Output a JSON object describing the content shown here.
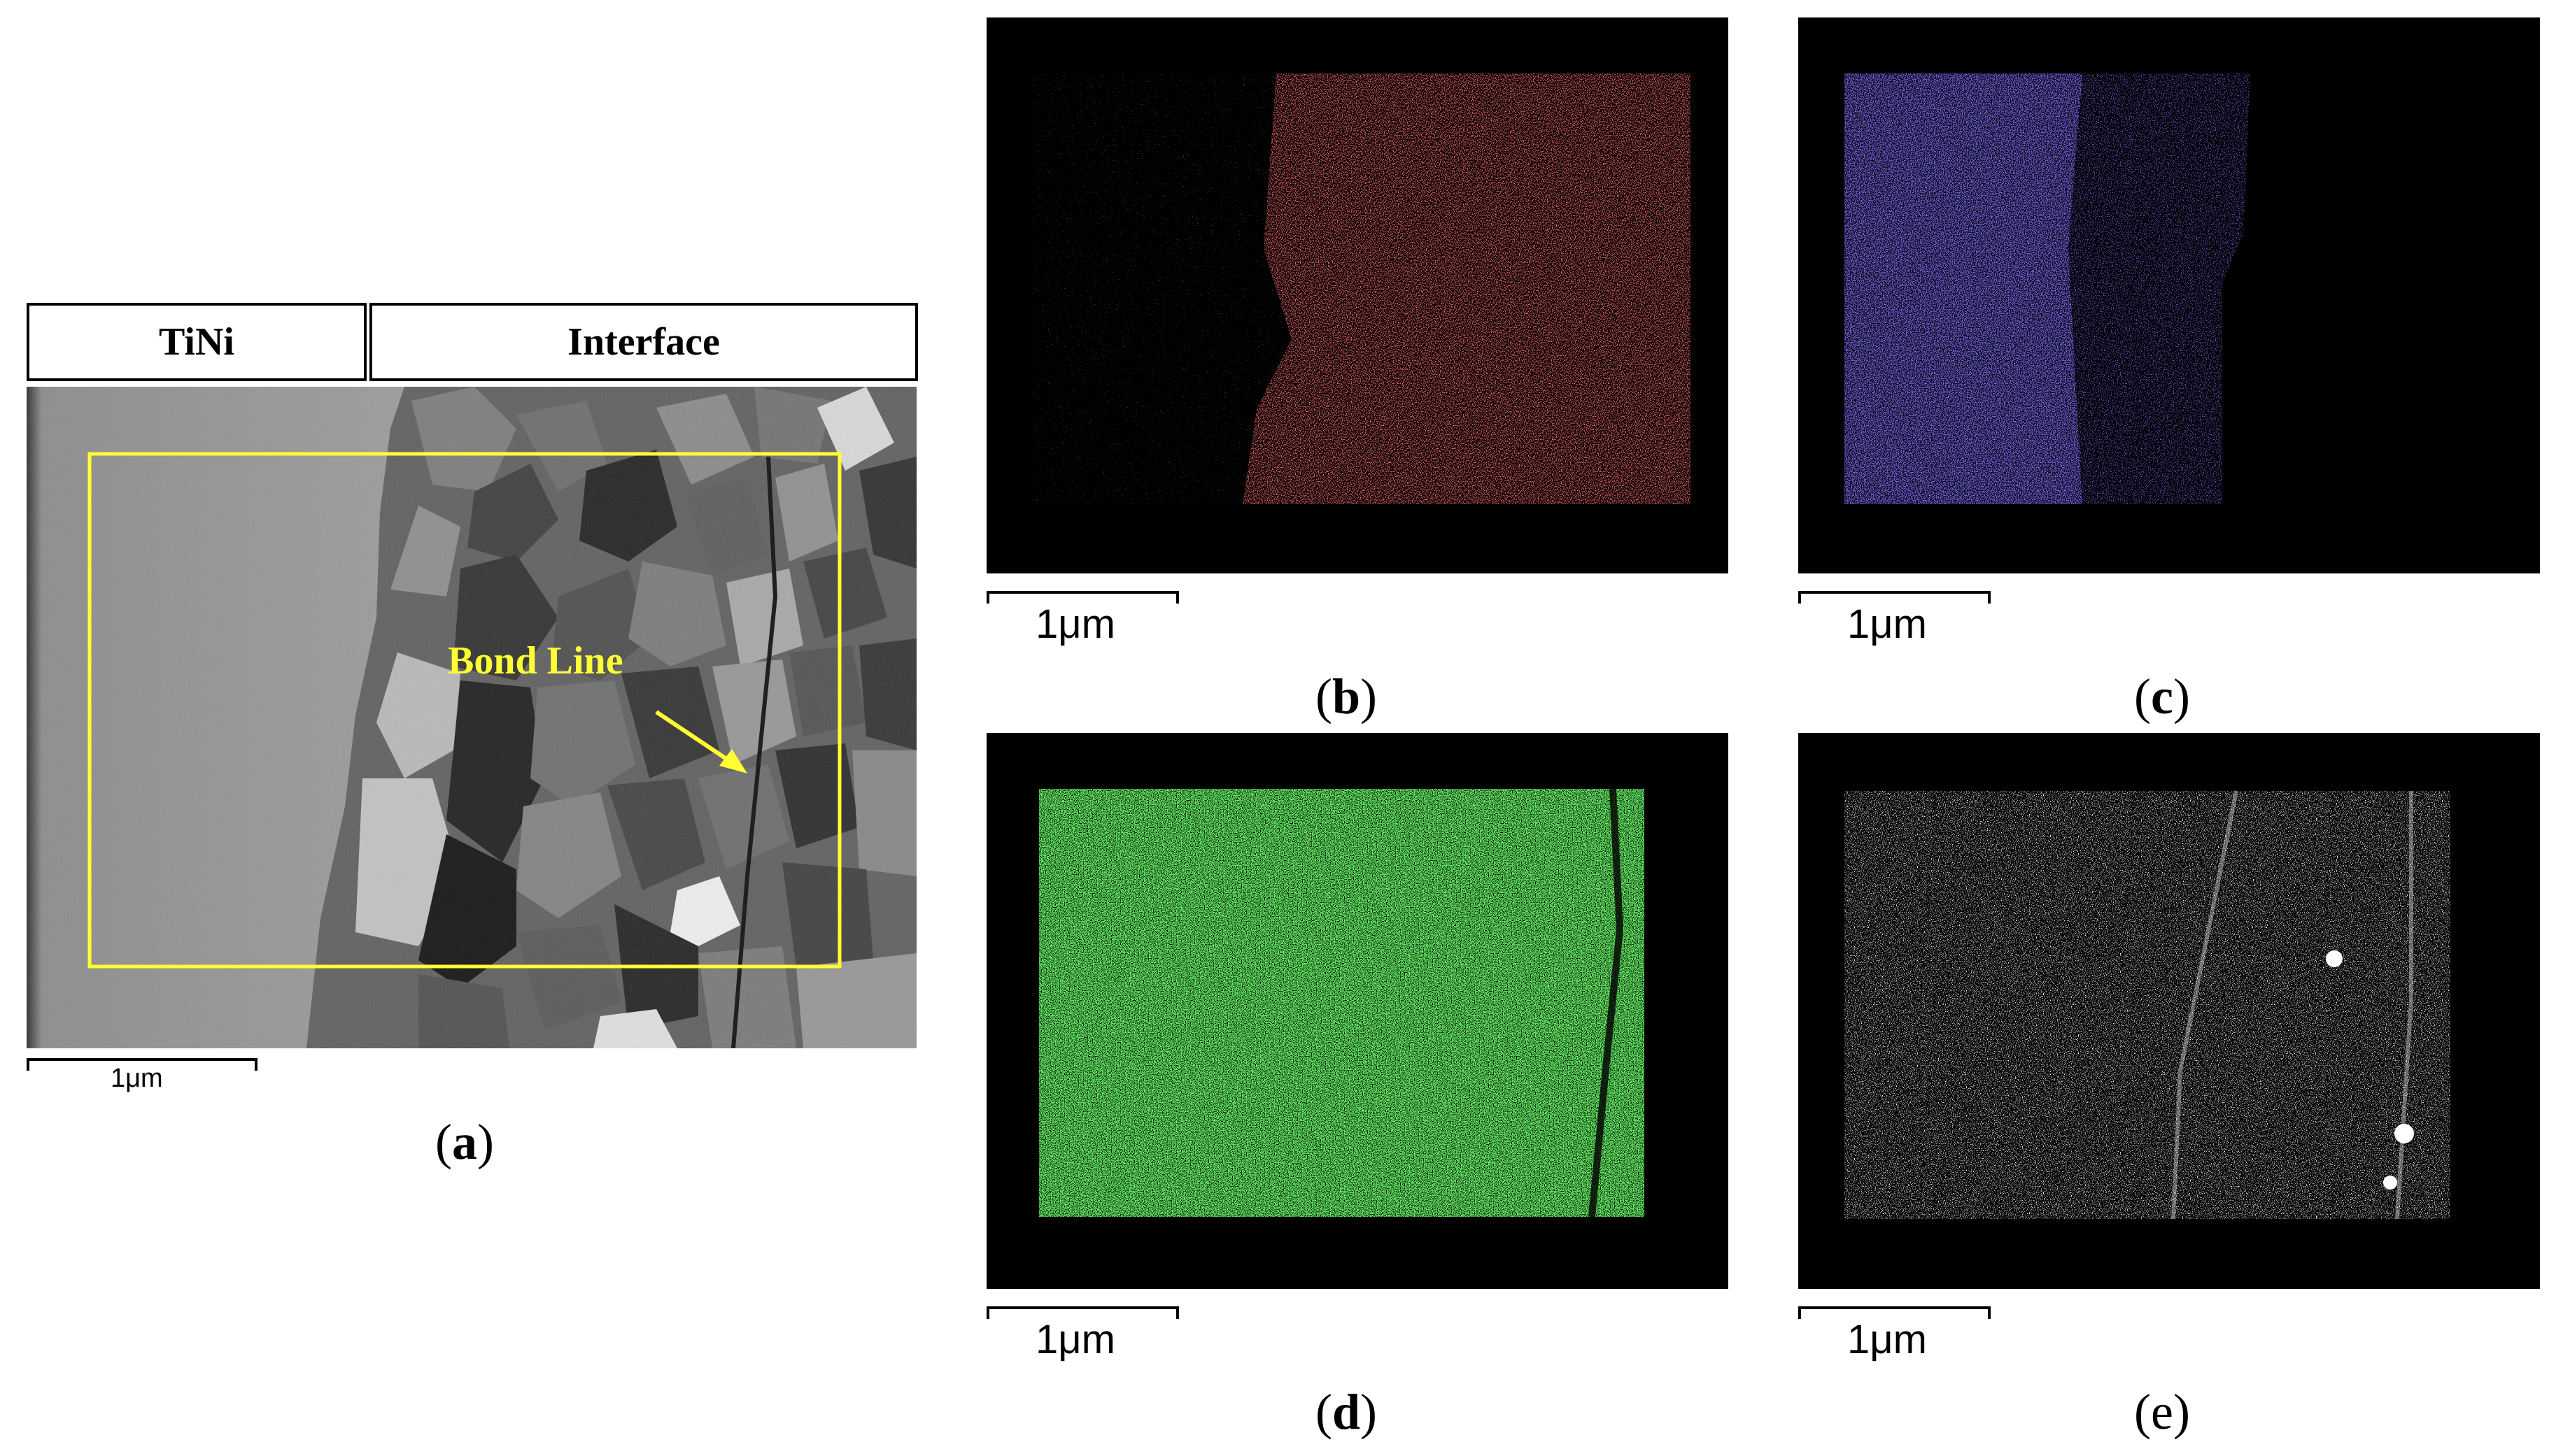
{
  "panel_a": {
    "header_left": "TiNi",
    "header_right": "Interface",
    "annotation": "Bond Line",
    "scale": "1μm",
    "caption_open": "(",
    "caption_letter": "a",
    "caption_close": ")"
  },
  "panel_b": {
    "scale": "1μm",
    "caption_open": "(",
    "caption_letter": "b",
    "caption_close": ")",
    "color": "#ff2a2a"
  },
  "panel_c": {
    "scale": "1μm",
    "caption_open": "(",
    "caption_letter": "c",
    "caption_close": ")",
    "color": "#3a2aff"
  },
  "panel_d": {
    "scale": "1μm",
    "caption_open": "(",
    "caption_letter": "d",
    "caption_close": ")",
    "color": "#22e022"
  },
  "panel_e": {
    "scale": "1μm",
    "caption_open": "(",
    "caption_letter": "e",
    "caption_close": ")",
    "color": "#ffffff"
  },
  "colors": {
    "annotation": "#ffff33",
    "roi_box": "#ffff33"
  }
}
